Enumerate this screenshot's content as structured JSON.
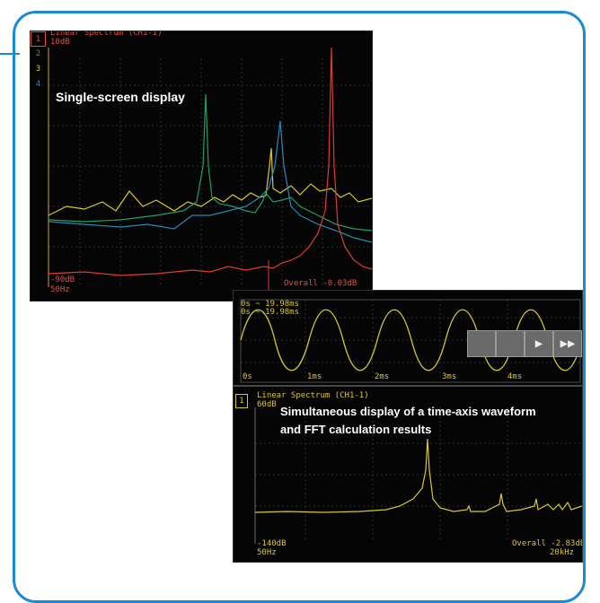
{
  "screen1": {
    "title": "Linear Spectrum (CH1-1)",
    "top_scale": "10dB",
    "bottom_scale": "-90dB",
    "freq_start": "50Hz",
    "overall": "Overall -0.03dB",
    "channels": [
      "1",
      "2",
      "3",
      "4"
    ],
    "caption": "Single-screen display"
  },
  "screen2": {
    "time_cursor_a": "0s ~ 19.98ms",
    "time_cursor_b": "0s ~ 19.98ms",
    "time_ticks": [
      "0s",
      "1ms",
      "2ms",
      "3ms",
      "4ms"
    ],
    "controls": [
      "",
      "",
      "▶",
      "▶▶"
    ],
    "fft_channel": "1",
    "fft_title": "Linear Spectrum (CH1-1)",
    "fft_top_scale": "60dB",
    "fft_bottom_scale": "-140dB",
    "fft_freq_start": "50Hz",
    "fft_freq_end": "20kHz",
    "fft_overall": "Overall -2.83dB",
    "caption_line1": "Simultaneous display of a time-axis waveform",
    "caption_line2": "and FFT calculation results"
  },
  "colors": {
    "frame": "#1a8ad4",
    "trace_red": "#e03a30",
    "trace_green": "#20a060",
    "trace_blue": "#2a88b8",
    "trace_yellow": "#d8c830",
    "grid": "#2c2c2c"
  }
}
